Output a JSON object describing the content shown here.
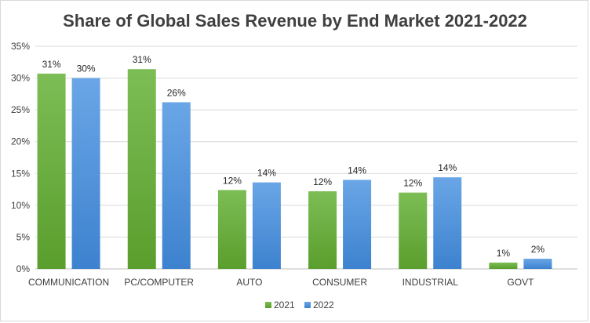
{
  "chart_data": {
    "type": "bar",
    "title": "Share of Global Sales Revenue by End Market 2021-2022",
    "xlabel": "",
    "ylabel": "",
    "ylim": [
      0,
      35
    ],
    "yticks": [
      "0%",
      "5%",
      "10%",
      "15%",
      "20%",
      "25%",
      "30%",
      "35%"
    ],
    "categories": [
      "COMMUNICATION",
      "PC/COMPUTER",
      "AUTO",
      "CONSUMER",
      "INDUSTRIAL",
      "GOVT"
    ],
    "series": [
      {
        "name": "2021",
        "values": [
          30.7,
          31.4,
          12.4,
          12.2,
          12.0,
          1.0
        ],
        "labels": [
          "31%",
          "31%",
          "12%",
          "12%",
          "12%",
          "1%"
        ]
      },
      {
        "name": "2022",
        "values": [
          30.0,
          26.2,
          13.6,
          14.0,
          14.4,
          1.6
        ],
        "labels": [
          "30%",
          "26%",
          "14%",
          "14%",
          "14%",
          "2%"
        ]
      }
    ],
    "grid": true,
    "legend": "bottom"
  },
  "colors": {
    "series_2021": "#6aae3c",
    "series_2022": "#4a8fd8",
    "grid": "#d9d9d9"
  }
}
